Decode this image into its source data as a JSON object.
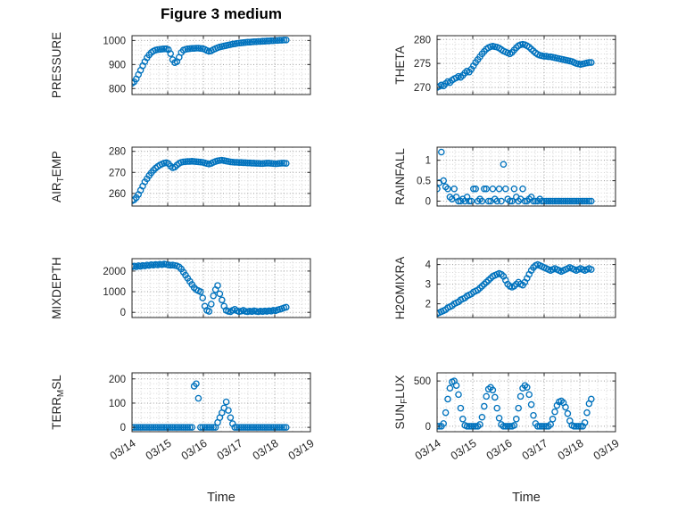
{
  "title": "Figure 3 medium",
  "accent_color": "#0072BD",
  "chart_data": {
    "type": "scatter",
    "title": "Figure 3 medium",
    "xlabel": "Time",
    "xtick_labels": [
      "03/14",
      "03/15",
      "03/16",
      "03/17",
      "03/18",
      "03/19"
    ],
    "xtick_values": [
      0,
      1,
      2,
      3,
      4,
      5
    ],
    "xlim": [
      0,
      5
    ],
    "x_minor_step": 0.25,
    "x_unit": "days after 03/14",
    "marker": {
      "shape": "circle",
      "color": "#0072BD",
      "fill": "none"
    },
    "grid": "dotted major and minor",
    "x": [
      0,
      0.06,
      0.12,
      0.18,
      0.24,
      0.3,
      0.36,
      0.42,
      0.48,
      0.54,
      0.6,
      0.66,
      0.72,
      0.78,
      0.84,
      0.9,
      0.96,
      1.02,
      1.08,
      1.14,
      1.2,
      1.26,
      1.32,
      1.38,
      1.44,
      1.5,
      1.56,
      1.62,
      1.68,
      1.74,
      1.8,
      1.86,
      1.92,
      1.98,
      2.04,
      2.1,
      2.16,
      2.22,
      2.28,
      2.34,
      2.4,
      2.46,
      2.52,
      2.58,
      2.64,
      2.7,
      2.76,
      2.82,
      2.88,
      2.94,
      3,
      3.06,
      3.12,
      3.18,
      3.24,
      3.3,
      3.36,
      3.42,
      3.48,
      3.54,
      3.6,
      3.66,
      3.72,
      3.78,
      3.84,
      3.9,
      3.96,
      4.02,
      4.08,
      4.14,
      4.2,
      4.26,
      4.32
    ],
    "subplots": [
      {
        "name": "PRESSURE",
        "ylabel": "PRESSURE",
        "row": 1,
        "col": 1,
        "yticks": [
          800,
          900,
          1000
        ],
        "ytick_labels": [
          "800",
          "900",
          "1000"
        ],
        "ylim": [
          775,
          1020
        ],
        "y_minor_step": 20,
        "y": [
          822,
          828,
          840,
          858,
          876,
          895,
          912,
          928,
          940,
          950,
          956,
          960,
          962,
          963,
          964,
          965,
          965,
          962,
          945,
          920,
          908,
          912,
          930,
          950,
          960,
          963,
          965,
          966,
          967,
          967,
          968,
          968,
          967,
          966,
          963,
          958,
          955,
          957,
          962,
          966,
          970,
          973,
          975,
          977,
          979,
          981,
          983,
          985,
          986,
          988,
          989,
          990,
          991,
          992,
          993,
          993,
          994,
          995,
          995,
          996,
          996,
          997,
          997,
          998,
          998,
          999,
          999,
          1000,
          1000,
          1001,
          1001,
          1002,
          1002
        ]
      },
      {
        "name": "THETA",
        "ylabel": "THETA",
        "row": 1,
        "col": 2,
        "yticks": [
          270,
          275,
          280
        ],
        "ytick_labels": [
          "270",
          "275",
          "280"
        ],
        "ylim": [
          268.5,
          280.8
        ],
        "y_minor_step": 1,
        "y": [
          270,
          270.2,
          270.5,
          270.3,
          270.8,
          271.2,
          271,
          271.5,
          271.8,
          272,
          272.3,
          272.1,
          272.5,
          273,
          273.4,
          273.2,
          273.8,
          274.5,
          275.2,
          275.8,
          276.4,
          277,
          277.5,
          278,
          278.3,
          278.5,
          278.6,
          278.5,
          278.4,
          278.2,
          277.9,
          277.6,
          277.4,
          277.2,
          277,
          277.3,
          277.8,
          278.3,
          278.7,
          278.9,
          279,
          278.9,
          278.7,
          278.4,
          278,
          277.6,
          277.2,
          276.9,
          276.7,
          276.6,
          276.5,
          276.5,
          276.4,
          276.4,
          276.3,
          276.2,
          276.1,
          276,
          275.9,
          275.8,
          275.7,
          275.6,
          275.5,
          275.4,
          275.2,
          275,
          274.9,
          274.8,
          274.9,
          275,
          275.1,
          275.2,
          275.2
        ]
      },
      {
        "name": "AIR_TEMP",
        "ylabel": "AIR_TEMP",
        "row": 2,
        "col": 1,
        "yticks": [
          260,
          270,
          280
        ],
        "ytick_labels": [
          "260",
          "270",
          "280"
        ],
        "ylim": [
          254,
          282
        ],
        "y_minor_step": 2,
        "y": [
          256.5,
          257,
          258,
          259.5,
          261.5,
          263.5,
          265.5,
          267,
          268.5,
          269.8,
          271,
          272,
          272.8,
          273.5,
          274,
          274.4,
          274.6,
          274.2,
          273,
          272.2,
          272.5,
          273.5,
          274.3,
          274.8,
          275,
          275.1,
          275.2,
          275.2,
          275.3,
          275.2,
          275.1,
          275,
          274.9,
          274.8,
          274.5,
          274.2,
          274,
          274.3,
          274.8,
          275.2,
          275.5,
          275.7,
          275.8,
          275.6,
          275.4,
          275.2,
          275,
          274.9,
          274.8,
          274.8,
          274.7,
          274.7,
          274.6,
          274.6,
          274.5,
          274.5,
          274.4,
          274.4,
          274.3,
          274.3,
          274.2,
          274.2,
          274.3,
          274.4,
          274.4,
          274.3,
          274.2,
          274.1,
          274.2,
          274.3,
          274.4,
          274.4,
          274.3
        ]
      },
      {
        "name": "RAINFALL",
        "ylabel": "RAINFALL",
        "row": 2,
        "col": 2,
        "yticks": [
          0,
          0.5,
          1
        ],
        "ytick_labels": [
          "0",
          "0.5",
          "1"
        ],
        "ylim": [
          -0.12,
          1.32
        ],
        "y_minor_step": 0.1,
        "y": [
          0.3,
          0.45,
          1.2,
          0.5,
          0.35,
          0.3,
          0.1,
          0.05,
          0.3,
          0.1,
          0,
          0,
          0.05,
          0,
          0.1,
          0,
          0,
          0.3,
          0.3,
          0,
          0.05,
          0,
          0.3,
          0.3,
          0,
          0,
          0.3,
          0.05,
          0,
          0.3,
          0,
          0.9,
          0.3,
          0.05,
          0,
          0,
          0.3,
          0.1,
          0,
          0.05,
          0.3,
          0,
          0,
          0.05,
          0.1,
          0,
          0,
          0,
          0.05,
          0,
          0,
          0,
          0,
          0,
          0,
          0,
          0,
          0,
          0,
          0,
          0,
          0,
          0,
          0,
          0,
          0,
          0,
          0,
          0,
          0,
          0,
          0,
          0
        ]
      },
      {
        "name": "MIXDEPTH",
        "ylabel": "MIXDEPTH",
        "row": 3,
        "col": 1,
        "yticks": [
          0,
          1000,
          2000
        ],
        "ytick_labels": [
          "0",
          "1000",
          "2000"
        ],
        "ylim": [
          -250,
          2600
        ],
        "y_minor_step": 200,
        "y": [
          2200,
          2240,
          2210,
          2260,
          2230,
          2270,
          2250,
          2290,
          2270,
          2310,
          2290,
          2320,
          2300,
          2330,
          2310,
          2340,
          2320,
          2300,
          2280,
          2290,
          2270,
          2250,
          2200,
          2100,
          1950,
          1800,
          1650,
          1500,
          1350,
          1200,
          1100,
          1050,
          1000,
          700,
          300,
          100,
          50,
          400,
          800,
          1100,
          1300,
          900,
          600,
          300,
          100,
          50,
          30,
          100,
          150,
          80,
          40,
          60,
          100,
          50,
          30,
          60,
          40,
          80,
          50,
          30,
          60,
          40,
          70,
          50,
          80,
          60,
          100,
          80,
          120,
          150,
          180,
          220,
          250
        ]
      },
      {
        "name": "H2OMIXRA",
        "ylabel": "H2OMIXRA",
        "row": 3,
        "col": 2,
        "yticks": [
          2,
          3,
          4
        ],
        "ytick_labels": [
          "2",
          "3",
          "4"
        ],
        "ylim": [
          1.3,
          4.3
        ],
        "y_minor_step": 0.2,
        "y": [
          1.5,
          1.55,
          1.6,
          1.65,
          1.7,
          1.8,
          1.85,
          1.9,
          2,
          2.05,
          2.1,
          2.2,
          2.25,
          2.3,
          2.4,
          2.45,
          2.5,
          2.6,
          2.65,
          2.7,
          2.8,
          2.9,
          3,
          3.1,
          3.2,
          3.3,
          3.4,
          3.45,
          3.5,
          3.55,
          3.5,
          3.4,
          3.2,
          3,
          2.9,
          2.85,
          2.9,
          3,
          3.1,
          3,
          2.95,
          3.1,
          3.3,
          3.5,
          3.7,
          3.85,
          3.95,
          4,
          3.95,
          3.9,
          3.85,
          3.8,
          3.75,
          3.7,
          3.75,
          3.8,
          3.75,
          3.7,
          3.65,
          3.7,
          3.75,
          3.8,
          3.85,
          3.8,
          3.75,
          3.7,
          3.75,
          3.8,
          3.75,
          3.7,
          3.75,
          3.8,
          3.75
        ]
      },
      {
        "name": "TERR_MSL",
        "ylabel": "TERR_MSL",
        "row": 4,
        "col": 1,
        "yticks": [
          0,
          100,
          200
        ],
        "ytick_labels": [
          "0",
          "100",
          "200"
        ],
        "ylim": [
          -18,
          225
        ],
        "y_minor_step": 20,
        "y": [
          0,
          0,
          0,
          0,
          0,
          0,
          0,
          0,
          0,
          0,
          0,
          0,
          0,
          0,
          0,
          0,
          0,
          0,
          0,
          0,
          0,
          0,
          0,
          0,
          0,
          0,
          0,
          0,
          0,
          170,
          180,
          120,
          0,
          0,
          0,
          0,
          0,
          0,
          0,
          0,
          20,
          40,
          60,
          80,
          105,
          70,
          40,
          15,
          0,
          0,
          0,
          0,
          0,
          0,
          0,
          0,
          0,
          0,
          0,
          0,
          0,
          0,
          0,
          0,
          0,
          0,
          0,
          0,
          0,
          0,
          0,
          0,
          0
        ]
      },
      {
        "name": "SUN_FLUX",
        "ylabel": "SUN_FLUX",
        "row": 4,
        "col": 2,
        "yticks": [
          0,
          500
        ],
        "ytick_labels": [
          "0",
          "500"
        ],
        "ylim": [
          -60,
          590
        ],
        "y_minor_step": 100,
        "y": [
          0,
          0,
          0,
          30,
          150,
          300,
          420,
          490,
          500,
          450,
          350,
          200,
          80,
          10,
          0,
          0,
          0,
          0,
          0,
          0,
          20,
          100,
          220,
          330,
          410,
          430,
          400,
          320,
          200,
          90,
          20,
          0,
          0,
          0,
          0,
          0,
          10,
          80,
          200,
          330,
          420,
          450,
          430,
          350,
          240,
          120,
          30,
          0,
          0,
          0,
          0,
          0,
          0,
          20,
          80,
          160,
          230,
          270,
          280,
          260,
          210,
          140,
          60,
          10,
          0,
          0,
          0,
          0,
          0,
          40,
          150,
          250,
          300
        ]
      }
    ]
  }
}
